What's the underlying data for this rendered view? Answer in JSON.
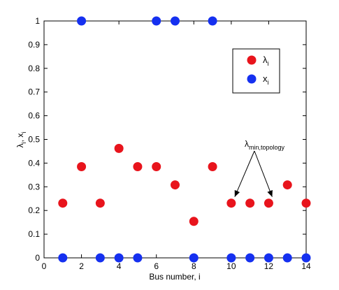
{
  "chart_data": {
    "type": "scatter",
    "xlabel": "Bus number, i",
    "ylabel": "λ",
    "ylabel_sub": "i",
    "ylabel_sep": ", x",
    "ylabel_sub2": "i",
    "xlim": [
      0,
      14
    ],
    "ylim": [
      0,
      1
    ],
    "xticks": [
      0,
      2,
      4,
      6,
      8,
      10,
      12,
      14
    ],
    "yticks": [
      0,
      0.1,
      0.2,
      0.3,
      0.4,
      0.5,
      0.6,
      0.7,
      0.8,
      0.9,
      1
    ],
    "xtick_labels": [
      "0",
      "2",
      "4",
      "6",
      "8",
      "10",
      "12",
      "14"
    ],
    "ytick_labels": [
      "0",
      "0.1",
      "0.2",
      "0.3",
      "0.4",
      "0.5",
      "0.6",
      "0.7",
      "0.8",
      "0.9",
      "1"
    ],
    "grid": false,
    "legend_position": "top-right",
    "series": [
      {
        "name": "λ",
        "name_sub": "i",
        "color": "#e8141c",
        "x": [
          1,
          2,
          3,
          4,
          5,
          6,
          7,
          8,
          9,
          10,
          11,
          12,
          13,
          14
        ],
        "y": [
          0.231,
          0.385,
          0.231,
          0.462,
          0.385,
          0.385,
          0.308,
          0.154,
          0.385,
          0.231,
          0.231,
          0.231,
          0.308,
          0.231
        ]
      },
      {
        "name": "x",
        "name_sub": "i",
        "color": "#1530f0",
        "x": [
          1,
          2,
          3,
          4,
          5,
          6,
          7,
          8,
          9,
          10,
          11,
          12,
          13,
          14
        ],
        "y": [
          0,
          1,
          0,
          0,
          0,
          1,
          1,
          0,
          1,
          0,
          0,
          0,
          0,
          0
        ]
      }
    ],
    "annotation": {
      "text": "λ",
      "text_sub": "min,topology",
      "targets": [
        [
          10,
          0.231
        ],
        [
          12,
          0.231
        ]
      ]
    }
  }
}
